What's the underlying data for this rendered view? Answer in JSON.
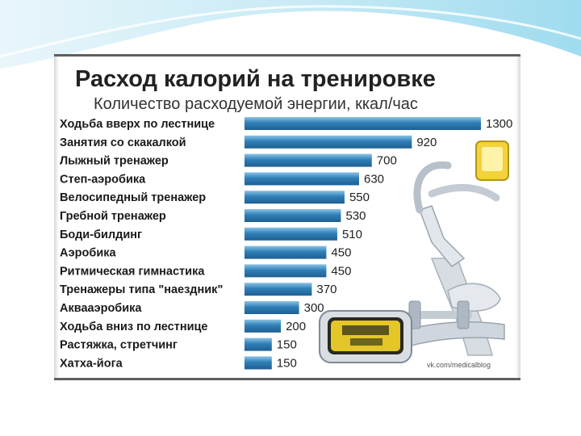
{
  "chart_data": {
    "type": "bar",
    "orientation": "horizontal",
    "title": "Расход калорий на тренировке",
    "subtitle": "Количество расходуемой энергии, ккал/час",
    "categories": [
      "Ходьба вверх по лестнице",
      "Занятия со скакалкой",
      "Лыжный тренажер",
      "Степ-аэробика",
      "Велосипедный тренажер",
      "Гребной тренажер",
      "Боди-билдинг",
      "Аэробика",
      "Ритмическая гимнастика",
      "Тренажеры типа \"наездник\"",
      "Аквааэробика",
      "Ходьба вниз по лестнице",
      "Растяжка, стретчинг",
      "Хатха-йога"
    ],
    "values": [
      1300,
      920,
      700,
      630,
      550,
      530,
      510,
      450,
      450,
      370,
      300,
      200,
      150,
      150
    ],
    "xlim": [
      0,
      1300
    ],
    "grid": false,
    "legend": "none",
    "colors": {
      "bar_top": "#2f7fb7",
      "bar_light": "#8ac4e6",
      "bar_dark": "#1f5f92"
    }
  },
  "footer": {
    "credit": "vk.com/medicalblog"
  },
  "decoration": {
    "icons": [
      "exercise-bike-icon",
      "dumbbells-icon",
      "stopwatch-icon"
    ]
  }
}
